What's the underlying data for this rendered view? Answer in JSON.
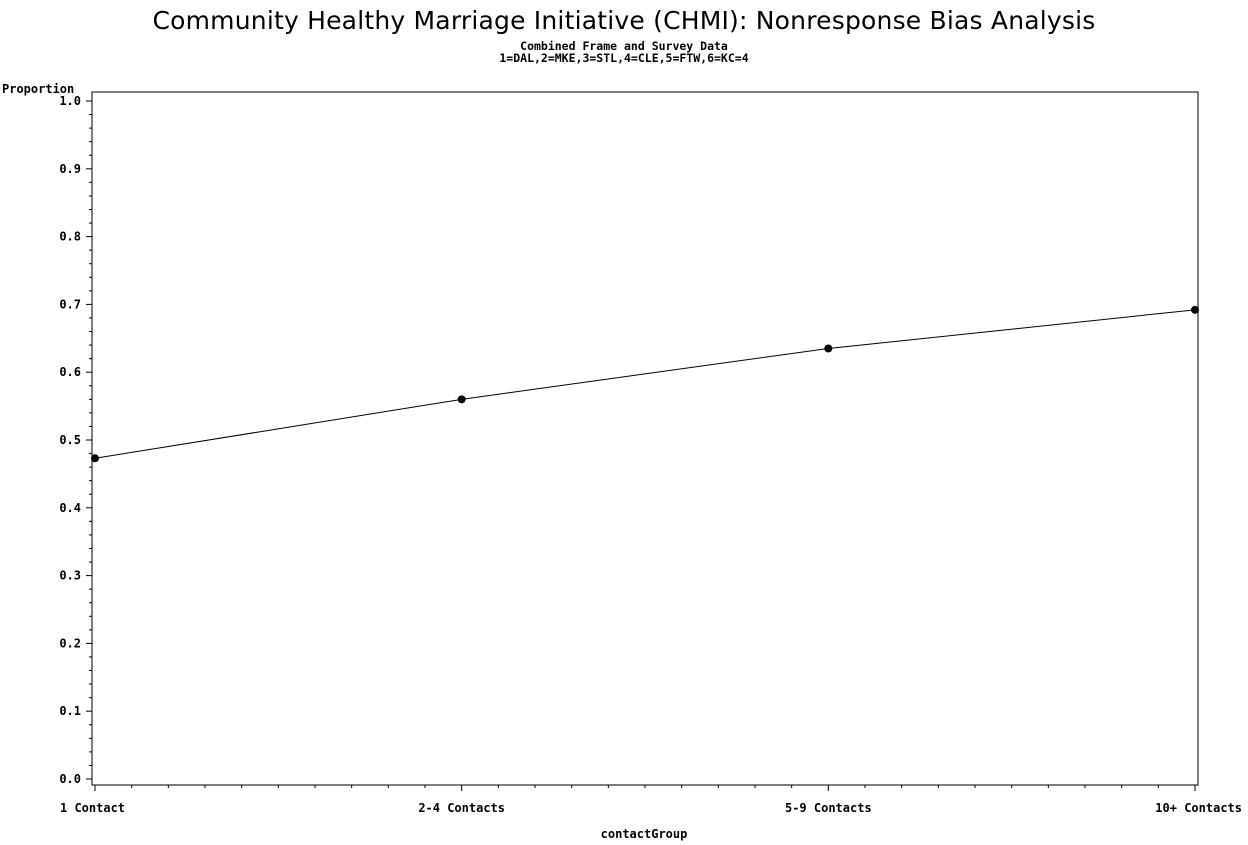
{
  "chart_data": {
    "type": "line",
    "title": "Community Healthy Marriage Initiative (CHMI): Nonresponse Bias Analysis",
    "subtitles": [
      "Combined Frame and Survey Data",
      "1=DAL,2=MKE,3=STL,4=CLE,5=FTW,6=KC=4"
    ],
    "xlabel": "contactGroup",
    "ylabel": "Proportion",
    "categories": [
      "1 Contact",
      "2-4 Contacts",
      "5-9 Contacts",
      "10+ Contacts"
    ],
    "values": [
      0.473,
      0.56,
      0.635,
      0.692
    ],
    "ylim": [
      0.0,
      1.0
    ],
    "yticks": [
      "0.0",
      "0.1",
      "0.2",
      "0.3",
      "0.4",
      "0.5",
      "0.6",
      "0.7",
      "0.8",
      "0.9",
      "1.0"
    ],
    "grid": false,
    "legend": "none",
    "colors": {
      "line": "#000000",
      "marker": "#000000",
      "frame": "#000000",
      "background": "#ffffff"
    }
  }
}
